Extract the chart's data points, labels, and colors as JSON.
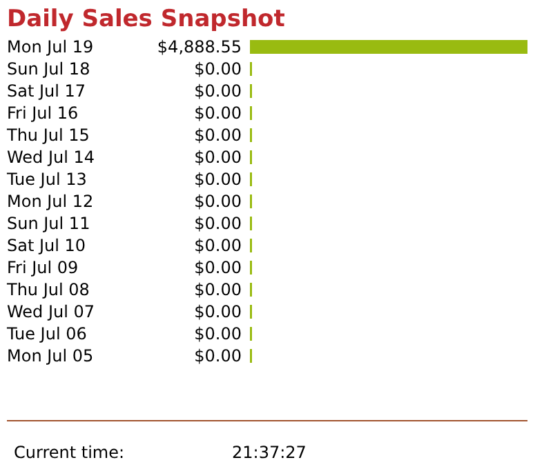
{
  "chart_data": {
    "type": "bar",
    "orientation": "horizontal",
    "title": "Daily Sales Snapshot",
    "categories": [
      "Mon Jul 19",
      "Sun Jul 18",
      "Sat Jul 17",
      "Fri Jul 16",
      "Thu Jul 15",
      "Wed Jul 14",
      "Tue Jul 13",
      "Mon Jul 12",
      "Sun Jul 11",
      "Sat Jul 10",
      "Fri Jul 09",
      "Thu Jul 08",
      "Wed Jul 07",
      "Tue Jul 06",
      "Mon Jul 05"
    ],
    "values": [
      4888.55,
      0,
      0,
      0,
      0,
      0,
      0,
      0,
      0,
      0,
      0,
      0,
      0,
      0,
      0
    ],
    "value_labels": [
      "$4,888.55",
      "$0.00",
      "$0.00",
      "$0.00",
      "$0.00",
      "$0.00",
      "$0.00",
      "$0.00",
      "$0.00",
      "$0.00",
      "$0.00",
      "$0.00",
      "$0.00",
      "$0.00",
      "$0.00"
    ],
    "color": "#99bb11",
    "annotations": [
      "Current time:",
      "21:37:27"
    ]
  }
}
